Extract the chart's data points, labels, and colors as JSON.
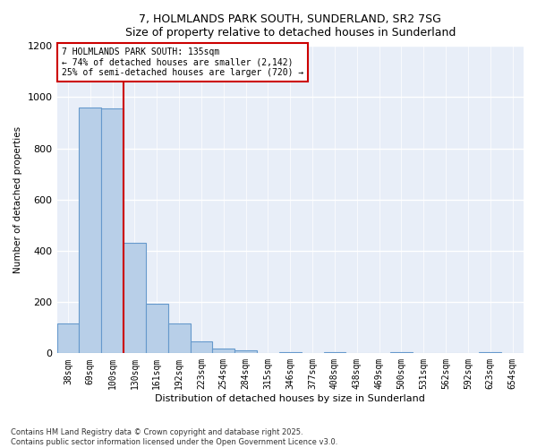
{
  "title_line1": "7, HOLMLANDS PARK SOUTH, SUNDERLAND, SR2 7SG",
  "title_line2": "Size of property relative to detached houses in Sunderland",
  "xlabel": "Distribution of detached houses by size in Sunderland",
  "ylabel": "Number of detached properties",
  "categories": [
    "38sqm",
    "69sqm",
    "100sqm",
    "130sqm",
    "161sqm",
    "192sqm",
    "223sqm",
    "254sqm",
    "284sqm",
    "315sqm",
    "346sqm",
    "377sqm",
    "408sqm",
    "438sqm",
    "469sqm",
    "500sqm",
    "531sqm",
    "562sqm",
    "592sqm",
    "623sqm",
    "654sqm"
  ],
  "bar_values": [
    118,
    960,
    955,
    430,
    193,
    117,
    47,
    17,
    13,
    0,
    5,
    0,
    3,
    0,
    0,
    4,
    0,
    0,
    0,
    4,
    0
  ],
  "bar_color": "#b8cfe8",
  "bar_edge_color": "#6699cc",
  "vline_color": "#cc0000",
  "vline_index": 2.5,
  "annotation_title": "7 HOLMLANDS PARK SOUTH: 135sqm",
  "annotation_line1": "← 74% of detached houses are smaller (2,142)",
  "annotation_line2": "25% of semi-detached houses are larger (720) →",
  "annotation_box_color": "#cc0000",
  "ylim": [
    0,
    1200
  ],
  "yticks": [
    0,
    200,
    400,
    600,
    800,
    1000,
    1200
  ],
  "background_color": "#e8eef8",
  "footer_line1": "Contains HM Land Registry data © Crown copyright and database right 2025.",
  "footer_line2": "Contains public sector information licensed under the Open Government Licence v3.0."
}
